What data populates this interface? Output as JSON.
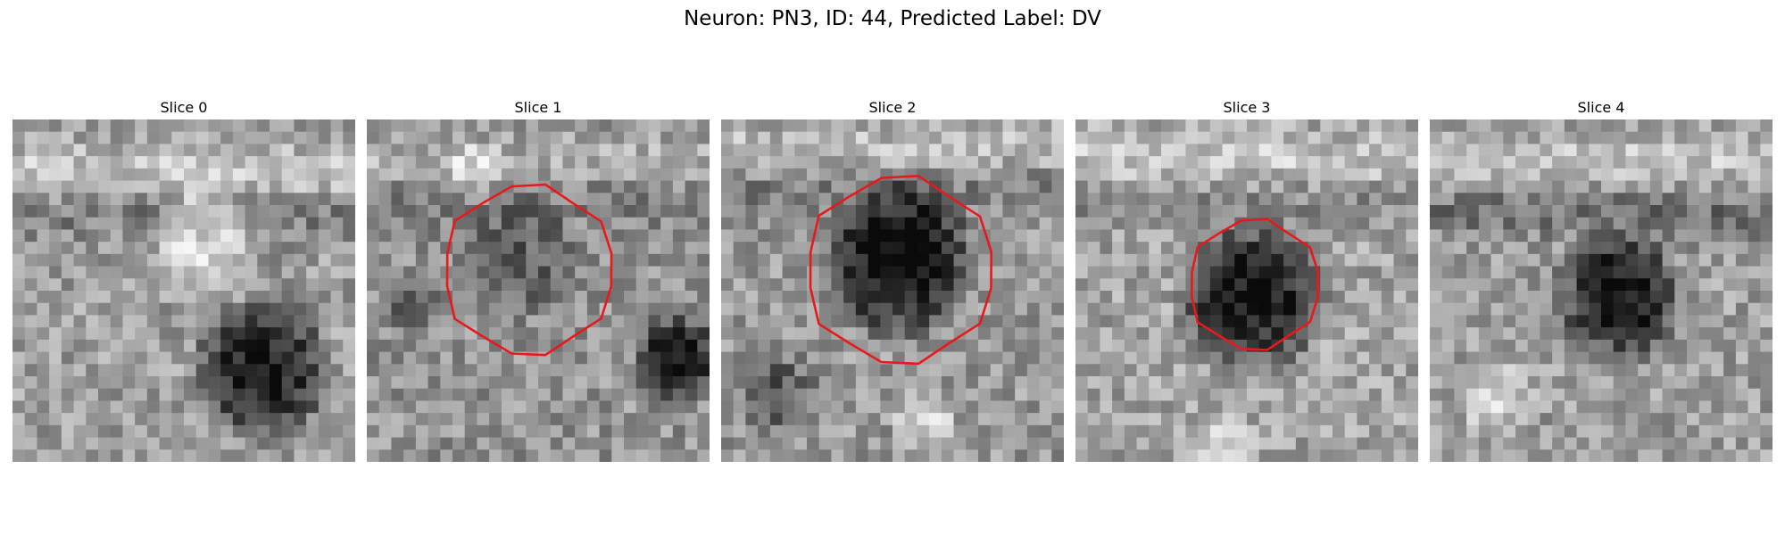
{
  "figure": {
    "title": "Neuron: PN3, ID: 44, Predicted Label: DV"
  },
  "panels": [
    {
      "title": "Slice 0",
      "has_contour": false
    },
    {
      "title": "Slice 1",
      "has_contour": true
    },
    {
      "title": "Slice 2",
      "has_contour": true
    },
    {
      "title": "Slice 3",
      "has_contour": true
    },
    {
      "title": "Slice 4",
      "has_contour": false
    }
  ],
  "style": {
    "contour_color": "#e8191c",
    "colormap": "grayscale"
  }
}
